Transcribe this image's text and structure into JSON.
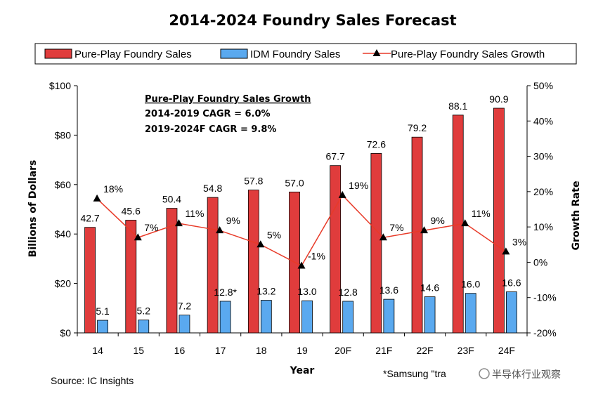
{
  "chart_data": {
    "type": "bar",
    "title": "2014-2024 Foundry Sales Forecast",
    "categories": [
      "14",
      "15",
      "16",
      "17",
      "18",
      "19",
      "20F",
      "21F",
      "22F",
      "23F",
      "24F"
    ],
    "series": [
      {
        "name": "Pure-Play Foundry Sales",
        "type": "bar",
        "axis": "left",
        "color": "#e03c3c",
        "values": [
          42.7,
          45.6,
          50.4,
          54.8,
          57.8,
          57.0,
          67.7,
          72.6,
          79.2,
          88.1,
          90.9
        ],
        "labels": [
          "42.7",
          "45.6",
          "50.4",
          "54.8",
          "57.8",
          "57.0",
          "67.7",
          "72.6",
          "79.2",
          "88.1",
          "90.9"
        ]
      },
      {
        "name": "IDM Foundry Sales",
        "type": "bar",
        "axis": "left",
        "color": "#5aa9ef",
        "values": [
          5.1,
          5.2,
          7.2,
          12.8,
          13.2,
          13.0,
          12.8,
          13.6,
          14.6,
          16.0,
          16.6
        ],
        "labels": [
          "5.1",
          "5.2",
          "7.2",
          "12.8*",
          "13.2",
          "13.0",
          "12.8",
          "13.6",
          "14.6",
          "16.0",
          "16.6"
        ]
      },
      {
        "name": "Pure-Play Foundry Sales Growth",
        "type": "line",
        "axis": "right",
        "color": "#e83a28",
        "values": [
          18,
          7,
          11,
          9,
          5,
          -1,
          19,
          7,
          9,
          11,
          3
        ],
        "labels": [
          "18%",
          "7%",
          "11%",
          "9%",
          "5%",
          "-1%",
          "19%",
          "7%",
          "9%",
          "11%",
          "3%"
        ]
      }
    ],
    "xlabel": "Year",
    "ylabel": "Billions of Dollars",
    "y2label": "Growth Rate",
    "ylim": [
      0,
      100
    ],
    "y2lim": [
      -20,
      50
    ],
    "yticks": [
      0,
      20,
      40,
      60,
      80,
      100
    ],
    "yticklabels": [
      "$0",
      "$20",
      "$40",
      "$60",
      "$80",
      "$100"
    ],
    "y2ticks": [
      -20,
      -10,
      0,
      10,
      20,
      30,
      40,
      50
    ],
    "y2ticklabels": [
      "-20%",
      "-10%",
      "0%",
      "10%",
      "20%",
      "30%",
      "40%",
      "50%"
    ],
    "legend_position": "top",
    "grid": false,
    "annotation": {
      "heading": "Pure-Play Foundry Sales Growth",
      "lines": [
        "2014-2019 CAGR = 6.0%",
        "2019-2024F CAGR = 9.8%"
      ]
    },
    "source": "Source: IC Insights",
    "note": "*Samsung \"tra"
  },
  "watermark": "半导体行业观察"
}
